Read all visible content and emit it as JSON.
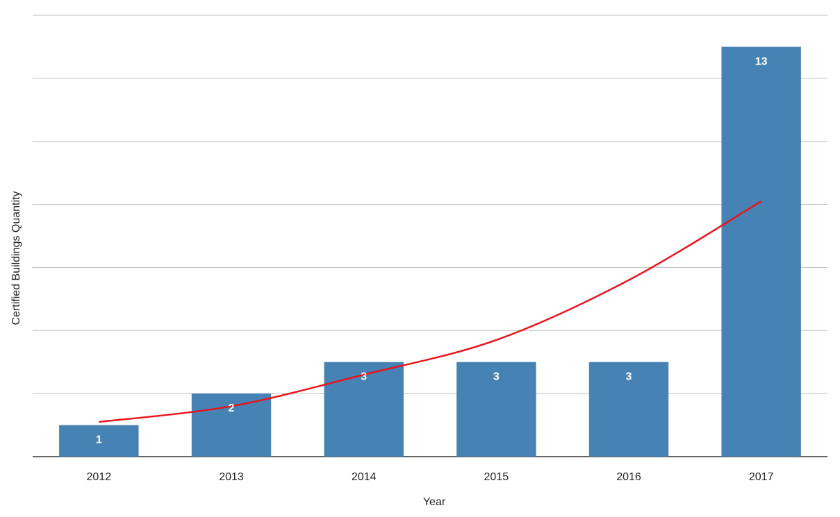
{
  "chart_data": {
    "type": "bar",
    "xlabel": "Year",
    "ylabel": "Certified Buildings Quantity",
    "categories": [
      "2012",
      "2013",
      "2014",
      "2015",
      "2016",
      "2017"
    ],
    "values": [
      1,
      2,
      3,
      3,
      3,
      13
    ],
    "data_labels": [
      "1",
      "2",
      "3",
      "3",
      "3",
      "13"
    ],
    "ylim": [
      0,
      14
    ],
    "grid": true,
    "bar_color": "#4682B4",
    "trendline": {
      "type": "exponential",
      "color": "#E8141B",
      "x": [
        "2012",
        "2013",
        "2014",
        "2015",
        "2016",
        "2017"
      ],
      "y": [
        1.1,
        1.6,
        2.6,
        3.7,
        5.6,
        8.1
      ]
    }
  }
}
